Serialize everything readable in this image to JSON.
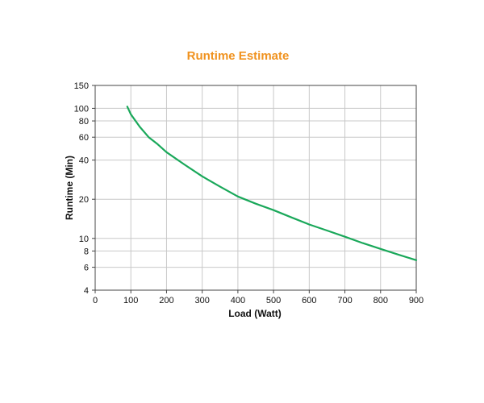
{
  "chart_data": {
    "type": "line",
    "title": "Runtime Estimate",
    "xlabel": "Load (Watt)",
    "ylabel": "Runtime (Min)",
    "xlim": [
      0,
      900
    ],
    "ylim": [
      4,
      150
    ],
    "yscale": "log",
    "grid": true,
    "x_ticks": [
      0,
      100,
      200,
      300,
      400,
      500,
      600,
      700,
      800,
      900
    ],
    "y_ticks": [
      4,
      6,
      8,
      10,
      20,
      40,
      60,
      80,
      100,
      150
    ],
    "series": [
      {
        "color": "#1aa85a",
        "x": [
          90,
          100,
          125,
          150,
          175,
          200,
          250,
          300,
          350,
          400,
          450,
          500,
          550,
          600,
          650,
          700,
          750,
          800,
          850,
          900
        ],
        "y": [
          103,
          90,
          72,
          60,
          53,
          46,
          37,
          30,
          25,
          21,
          18.5,
          16.5,
          14.5,
          12.8,
          11.5,
          10.3,
          9.2,
          8.3,
          7.5,
          6.8
        ]
      }
    ],
    "colors": {
      "title": "#f0921e",
      "grid": "#c8c8c8",
      "axis": "#444444"
    }
  }
}
